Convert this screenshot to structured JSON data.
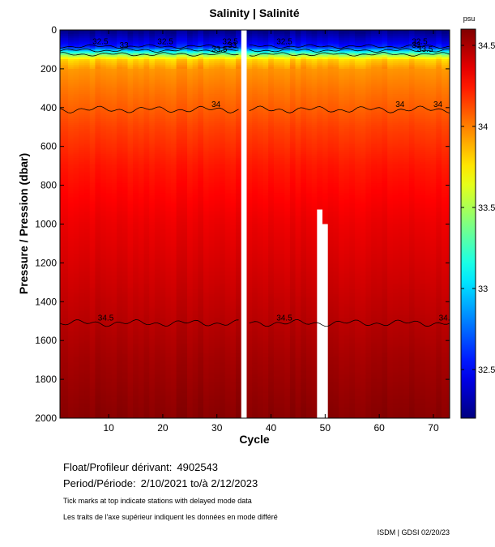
{
  "chart_data": {
    "type": "heatmap",
    "title": "Salinity | Salinité",
    "xlabel": "Cycle",
    "ylabel": "Pressure / Pression (dbar)",
    "x_ticks": [
      10,
      20,
      30,
      40,
      50,
      60,
      70
    ],
    "y_ticks": [
      0,
      200,
      400,
      600,
      800,
      1000,
      1200,
      1400,
      1600,
      1800,
      2000
    ],
    "xlim": [
      1,
      73
    ],
    "ylim": [
      2000,
      0
    ],
    "colorbar": {
      "unit": "psu",
      "min": 32.2,
      "max": 34.6,
      "ticks": [
        32.5,
        33,
        33.5,
        34,
        34.5
      ],
      "tick_labels": [
        "32.5",
        "33",
        "33.5",
        "34",
        "34.5"
      ],
      "colormap": "jet"
    },
    "contours": [
      {
        "level": 32.5,
        "label": "32.5",
        "pressure_dbar": 85,
        "label_cycles": [
          7,
          19,
          31,
          41,
          66
        ]
      },
      {
        "level": 33,
        "label": "33",
        "pressure_dbar": 105,
        "label_cycles": [
          12,
          32,
          66
        ]
      },
      {
        "level": 33.5,
        "label": "33.5",
        "pressure_dbar": 125,
        "label_cycles": [
          29,
          67
        ]
      },
      {
        "level": 34,
        "label": "34",
        "pressure_dbar": 410,
        "label_cycles": [
          29,
          63,
          70
        ]
      },
      {
        "level": 34.5,
        "label": "34.5",
        "pressure_dbar": 1510,
        "label_cycles": [
          8,
          41,
          71
        ]
      }
    ],
    "missing_data": [
      {
        "cycle": 35,
        "pressure_range": [
          0,
          2000
        ]
      },
      {
        "cycle": 49,
        "pressure_range": [
          925,
          2000
        ]
      },
      {
        "cycle": 50,
        "pressure_range": [
          1000,
          2000
        ]
      }
    ],
    "salinity_profile": {
      "pressure_dbar": [
        0,
        50,
        90,
        120,
        150,
        200,
        300,
        400,
        500,
        700,
        1000,
        1300,
        1500,
        1700,
        2000
      ],
      "psu": [
        32.2,
        32.4,
        32.6,
        33.3,
        33.8,
        33.95,
        34.02,
        34.08,
        34.15,
        34.25,
        34.35,
        34.42,
        34.47,
        34.52,
        34.58
      ]
    },
    "grid": false
  },
  "metadata": {
    "float_label": "Float/Profileur dérivant:",
    "float_id": "4902543",
    "period_label": "Period/Période:",
    "period_value": "2/10/2021  to/à  2/12/2023",
    "note_en": "Tick marks at top indicate stations with delayed mode data",
    "note_fr": "Les traits de l'axe supérieur indiquent les données en mode différé",
    "stamp": "ISDM | GDSI  02/20/23"
  }
}
